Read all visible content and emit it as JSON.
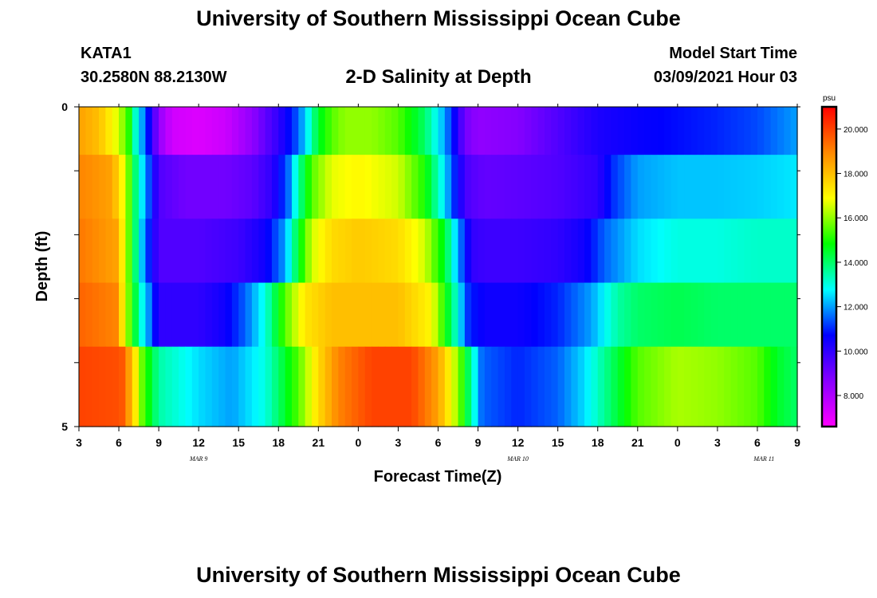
{
  "header": {
    "title": "University of Southern Mississippi Ocean Cube",
    "station_id": "KATA1",
    "station_coords": "30.2580N 88.2130W",
    "plot_title": "2-D Salinity at Depth",
    "start_label": "Model Start Time",
    "start_value": "03/09/2021 Hour 03"
  },
  "footer": {
    "title": "University of Southern Mississippi Ocean Cube"
  },
  "chart_data": {
    "type": "heatmap",
    "title": "2-D Salinity at Depth",
    "xlabel": "Forecast Time(Z)",
    "ylabel": "Depth (ft)",
    "x_tick_labels": [
      "3",
      "6",
      "9",
      "12",
      "15",
      "18",
      "21",
      "0",
      "3",
      "6",
      "9",
      "12",
      "15",
      "18",
      "21",
      "0",
      "3",
      "6",
      "9"
    ],
    "x_day_labels": [
      "MAR 9",
      "MAR 10",
      "MAR 11"
    ],
    "x_range_hours": [
      0,
      54
    ],
    "y_tick_labels": [
      "0",
      "5"
    ],
    "y_range": [
      0,
      5
    ],
    "colorbar": {
      "unit": "psu",
      "range": [
        6.6,
        21.0
      ],
      "tick_labels": [
        "8.000",
        "10.000",
        "12.000",
        "14.000",
        "16.000",
        "18.000",
        "20.000"
      ],
      "colors": [
        "#ff00ff",
        "#8800ff",
        "#0000ff",
        "#00ffff",
        "#00ff00",
        "#ffff00",
        "#ff8800",
        "#ff0000"
      ]
    },
    "depth_layers_ft": [
      0.25,
      1.25,
      2.25,
      3.25,
      4.25
    ],
    "series": [
      {
        "depth": 0.25,
        "hours": [
          0,
          1.5,
          3.0,
          3.8,
          4.3,
          5.0,
          6.0,
          7.0,
          9.0,
          11,
          13,
          15,
          16.5,
          17.3,
          18,
          19,
          20,
          22,
          24,
          26,
          27.5,
          28.3,
          29,
          30,
          33,
          36,
          39,
          42,
          45,
          48,
          51,
          54
        ],
        "values": [
          18.5,
          18.0,
          16.5,
          15.0,
          13.0,
          11.5,
          8.5,
          7.4,
          7.2,
          7.5,
          8.5,
          10.0,
          11.5,
          13.0,
          14.5,
          15.5,
          16.0,
          16.0,
          15.5,
          14.0,
          12.0,
          10.5,
          9.0,
          8.5,
          8.7,
          9.5,
          10.3,
          10.6,
          10.8,
          11.0,
          11.3,
          12.0
        ]
      },
      {
        "depth": 1.25,
        "hours": [
          0,
          2.5,
          3.5,
          4.2,
          5.0,
          6.0,
          8.0,
          11,
          13,
          14.5,
          15.7,
          16.5,
          17.5,
          19,
          21,
          24,
          26,
          27.5,
          28.5,
          29.3,
          30.5,
          33,
          36,
          39,
          40,
          42,
          45,
          48,
          51,
          54
        ],
        "values": [
          19.0,
          18.5,
          16.5,
          14.0,
          12.0,
          9.5,
          9.0,
          9.0,
          9.3,
          10.0,
          11.5,
          13.5,
          15.5,
          16.7,
          17.0,
          16.5,
          15.0,
          12.5,
          10.5,
          9.5,
          9.2,
          9.3,
          9.5,
          10.0,
          11.0,
          12.0,
          12.3,
          12.3,
          12.4,
          12.6
        ]
      },
      {
        "depth": 2.25,
        "hours": [
          0,
          2.8,
          3.5,
          4.2,
          5.0,
          6.0,
          9.0,
          12,
          14,
          15.5,
          16.5,
          17.5,
          19,
          21,
          24,
          26,
          27.5,
          28.5,
          29.5,
          30.5,
          33,
          36,
          38,
          39.5,
          42,
          45,
          48,
          51,
          54
        ],
        "values": [
          19.2,
          18.5,
          16.5,
          14.0,
          11.5,
          9.5,
          9.5,
          9.8,
          10.5,
          12.0,
          14.5,
          16.5,
          17.5,
          17.8,
          17.5,
          16.5,
          14.5,
          12.0,
          10.0,
          9.8,
          9.8,
          10.0,
          10.5,
          11.5,
          12.5,
          13.0,
          13.0,
          13.2,
          13.2
        ]
      },
      {
        "depth": 3.25,
        "hours": [
          0,
          2.8,
          3.5,
          4.0,
          4.7,
          5.2,
          6.0,
          9.0,
          11,
          12.5,
          14,
          15.5,
          17,
          19,
          21,
          24,
          26.5,
          28,
          29.3,
          30.5,
          33,
          36,
          38.5,
          40.5,
          42,
          45,
          48,
          51,
          54
        ],
        "values": [
          19.5,
          19.0,
          16.5,
          15.0,
          13.0,
          12.0,
          10.0,
          10.0,
          10.5,
          11.5,
          13.0,
          15.5,
          17.3,
          18.0,
          18.0,
          18.0,
          17.0,
          14.0,
          11.0,
          10.5,
          10.5,
          11.0,
          12.0,
          13.5,
          14.0,
          14.2,
          14.0,
          14.0,
          14.0
        ]
      },
      {
        "depth": 4.25,
        "hours": [
          0,
          3.2,
          4.0,
          4.8,
          6.0,
          9.0,
          11.5,
          14,
          16.5,
          18,
          19.5,
          22,
          25,
          27,
          28.5,
          29.5,
          30.3,
          33,
          36,
          38,
          40,
          42,
          45,
          48,
          51,
          52.5,
          54
        ],
        "values": [
          20.0,
          19.8,
          18.0,
          15.5,
          13.5,
          12.5,
          12.0,
          13.0,
          15.5,
          17.5,
          19.0,
          20.0,
          20.0,
          18.5,
          16.0,
          13.5,
          11.5,
          11.0,
          11.5,
          12.5,
          14.0,
          15.5,
          16.2,
          16.0,
          15.5,
          14.5,
          14.0
        ]
      }
    ]
  }
}
